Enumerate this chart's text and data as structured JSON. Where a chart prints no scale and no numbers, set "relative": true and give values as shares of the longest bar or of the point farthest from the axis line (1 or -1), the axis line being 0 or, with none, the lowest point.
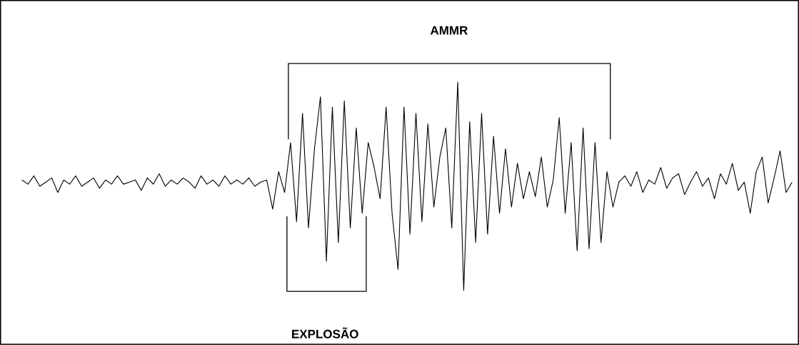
{
  "chart_data": {
    "type": "line",
    "relative": true,
    "color": "#000000",
    "categories": [
      null,
      null,
      null,
      null,
      null,
      null,
      null,
      null,
      null,
      null,
      null,
      null,
      null,
      null,
      null,
      null,
      null,
      null,
      null,
      null,
      null,
      null,
      null,
      null,
      null,
      null,
      null,
      null,
      null,
      null,
      null,
      null,
      null,
      null,
      null,
      null,
      null,
      null,
      null,
      null,
      null,
      null,
      null,
      null,
      null,
      null,
      null,
      null,
      null,
      null,
      null,
      null,
      null,
      null,
      null,
      null,
      null,
      null,
      null,
      null,
      null,
      null,
      null,
      null,
      null,
      null,
      null,
      null,
      null,
      null,
      null,
      null,
      null,
      null,
      null,
      null,
      null,
      null,
      null,
      null,
      null,
      null,
      null,
      null,
      null,
      null,
      null,
      null,
      null,
      null,
      null,
      null,
      null,
      null,
      null,
      null,
      null,
      null,
      null,
      null,
      null,
      null,
      null,
      null,
      null,
      null,
      null,
      null,
      null,
      null,
      null,
      null,
      null,
      null,
      null,
      null,
      null,
      null,
      null,
      null,
      null,
      null,
      null,
      null,
      null,
      null,
      null,
      null,
      null,
      null
    ],
    "values": [
      0.53,
      0.51,
      0.55,
      0.5,
      0.52,
      0.54,
      0.47,
      0.53,
      0.51,
      0.55,
      0.5,
      0.52,
      0.54,
      0.49,
      0.53,
      0.51,
      0.55,
      0.51,
      0.52,
      0.53,
      0.48,
      0.54,
      0.51,
      0.56,
      0.5,
      0.53,
      0.51,
      0.54,
      0.52,
      0.49,
      0.55,
      0.51,
      0.53,
      0.5,
      0.55,
      0.51,
      0.53,
      0.51,
      0.54,
      0.5,
      0.52,
      0.53,
      0.39,
      0.57,
      0.47,
      0.71,
      0.33,
      0.85,
      0.3,
      0.68,
      0.93,
      0.14,
      0.88,
      0.23,
      0.91,
      0.3,
      0.78,
      0.37,
      0.71,
      0.59,
      0.44,
      0.88,
      0.37,
      0.1,
      0.88,
      0.27,
      0.85,
      0.33,
      0.8,
      0.4,
      0.64,
      0.78,
      0.3,
      1,
      0,
      0.81,
      0.23,
      0.85,
      0.27,
      0.74,
      0.37,
      0.68,
      0.4,
      0.61,
      0.44,
      0.57,
      0.45,
      0.64,
      0.4,
      0.53,
      0.83,
      0.37,
      0.71,
      0.19,
      0.78,
      0.2,
      0.71,
      0.23,
      0.57,
      0.4,
      0.52,
      0.55,
      0.5,
      0.57,
      0.47,
      0.53,
      0.51,
      0.59,
      0.49,
      0.54,
      0.56,
      0.46,
      0.52,
      0.57,
      0.5,
      0.54,
      0.44,
      0.56,
      0.51,
      0.61,
      0.48,
      0.52,
      0.37,
      0.57,
      0.64,
      0.42,
      0.54,
      0.67,
      0.47,
      0.52
    ],
    "annotations": [
      "AMMR",
      "EXPLOSÃO"
    ]
  }
}
